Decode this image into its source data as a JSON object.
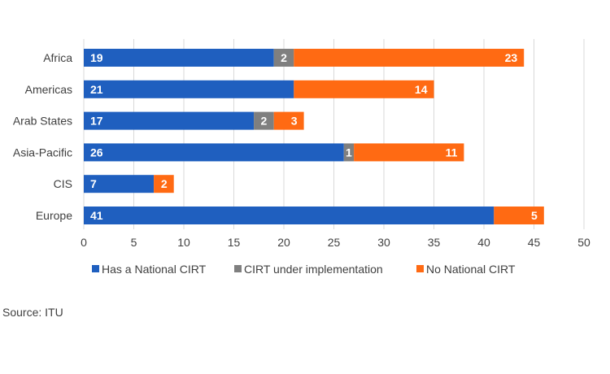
{
  "chart_data": {
    "type": "bar",
    "orientation": "horizontal",
    "stacked": true,
    "categories": [
      "Africa",
      "Americas",
      "Arab States",
      "Asia-Pacific",
      "CIS",
      "Europe"
    ],
    "series": [
      {
        "name": "Has a National CIRT",
        "color": "#1f5fbf",
        "values": [
          19,
          21,
          17,
          26,
          7,
          41
        ]
      },
      {
        "name": "CIRT under implementation",
        "color": "#7f7f7f",
        "values": [
          2,
          0,
          2,
          1,
          0,
          0
        ]
      },
      {
        "name": "No National CIRT",
        "color": "#ff6a13",
        "values": [
          23,
          14,
          3,
          11,
          2,
          5
        ]
      }
    ],
    "xlim": [
      0,
      50
    ],
    "xticks": [
      0,
      5,
      10,
      15,
      20,
      25,
      30,
      35,
      40,
      45,
      50
    ],
    "grid": "vertical",
    "legend_position": "bottom",
    "title": "",
    "xlabel": "",
    "ylabel": ""
  },
  "source": "Source: ITU"
}
